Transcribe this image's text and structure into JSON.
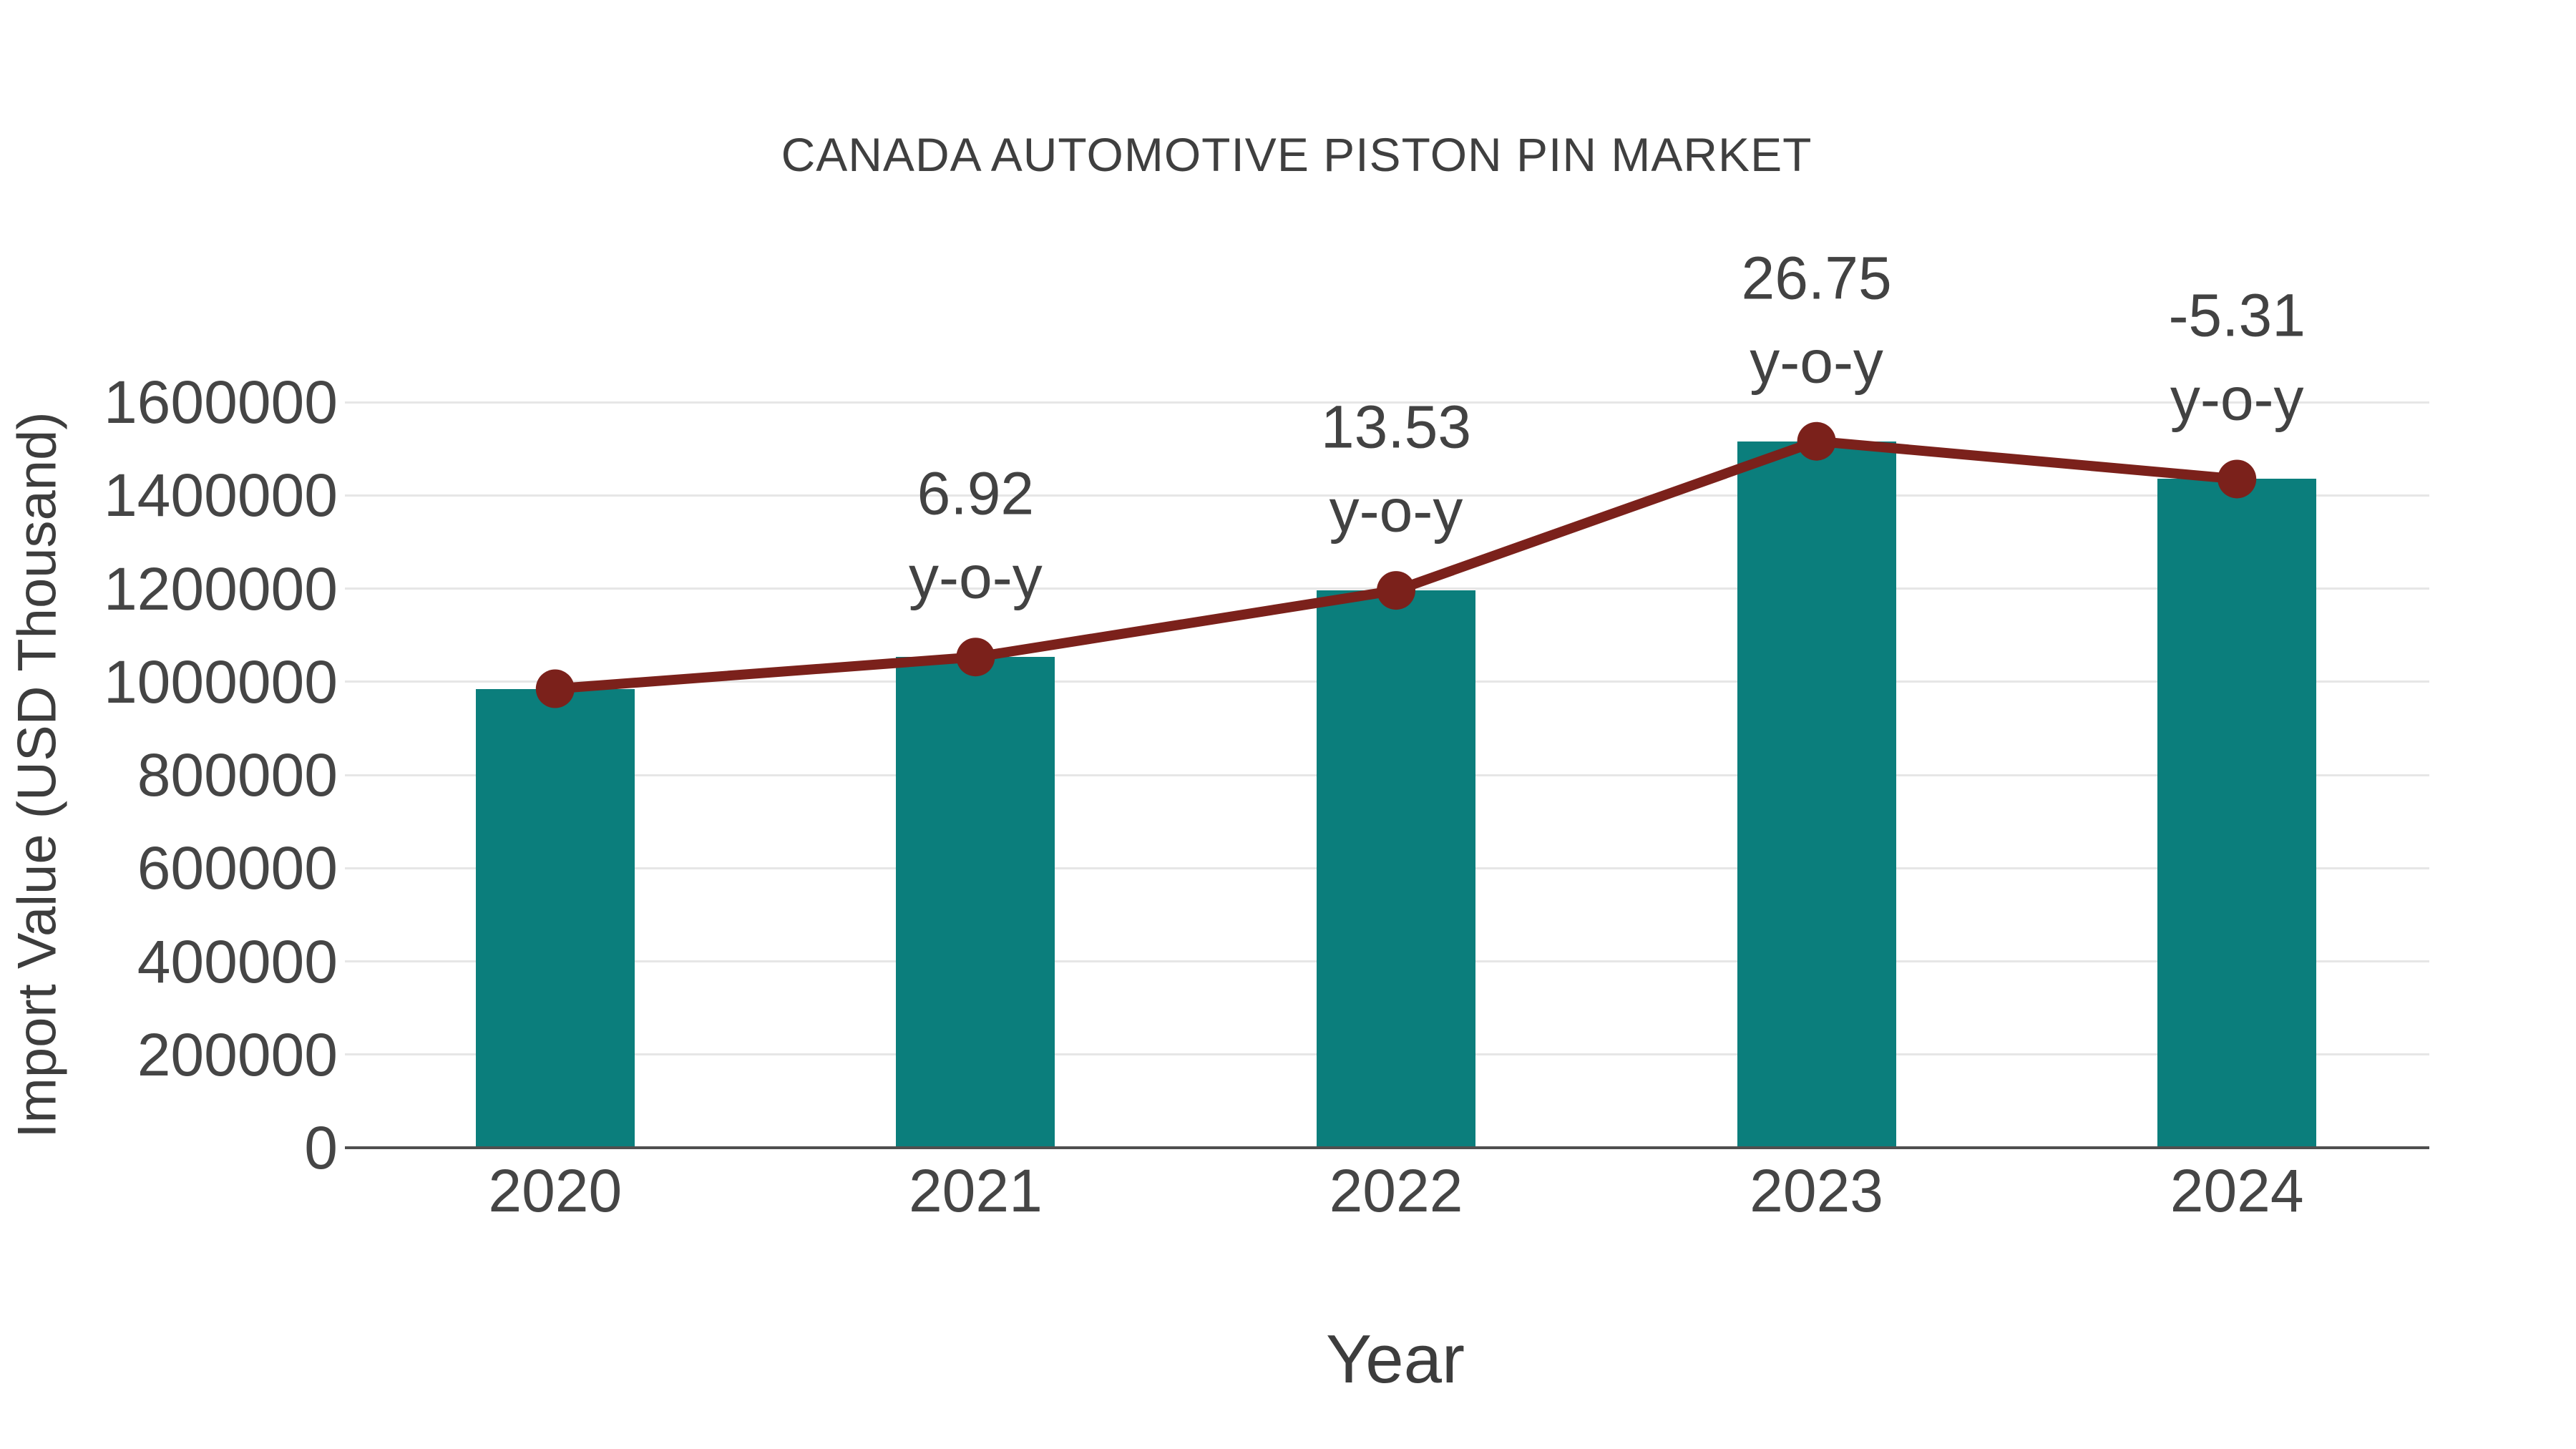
{
  "figure": {
    "background": "#ffffff"
  },
  "chart_data": {
    "type": "bar",
    "title": "CANADA AUTOMOTIVE PISTON PIN MARKET",
    "xlabel": "Year",
    "ylabel": "Import Value (USD Thousand)",
    "categories": [
      "2020",
      "2021",
      "2022",
      "2023",
      "2024"
    ],
    "series": [
      {
        "name": "Import Value (USD Thousand)",
        "type": "bar",
        "color": "#0b7e7c",
        "values": [
          985000,
          1053000,
          1196000,
          1516000,
          1435000
        ]
      },
      {
        "name": "y-o-y growth",
        "type": "line",
        "color": "#7b211b",
        "values": [
          985000,
          1053000,
          1196000,
          1516000,
          1435000
        ],
        "yoy_percent": [
          null,
          6.92,
          13.53,
          26.75,
          -5.31
        ]
      }
    ],
    "point_annotations": [
      {
        "category": "2021",
        "line1": "6.92",
        "line2": "y-o-y"
      },
      {
        "category": "2022",
        "line1": "13.53",
        "line2": "y-o-y"
      },
      {
        "category": "2023",
        "line1": "26.75",
        "line2": "y-o-y"
      },
      {
        "category": "2024",
        "line1": "-5.31",
        "line2": "y-o-y"
      }
    ],
    "ylim": [
      0,
      1600000
    ],
    "ytick_step": 200000,
    "yticks": [
      "0",
      "200000",
      "400000",
      "600000",
      "800000",
      "1000000",
      "1200000",
      "1400000",
      "1600000"
    ],
    "grid": "horizontal",
    "legend": "none"
  },
  "colors": {
    "grid": "#e6e6e6",
    "axis": "#4f4f4f",
    "tick_text": "#454545",
    "title_text": "#3f3f3f"
  }
}
